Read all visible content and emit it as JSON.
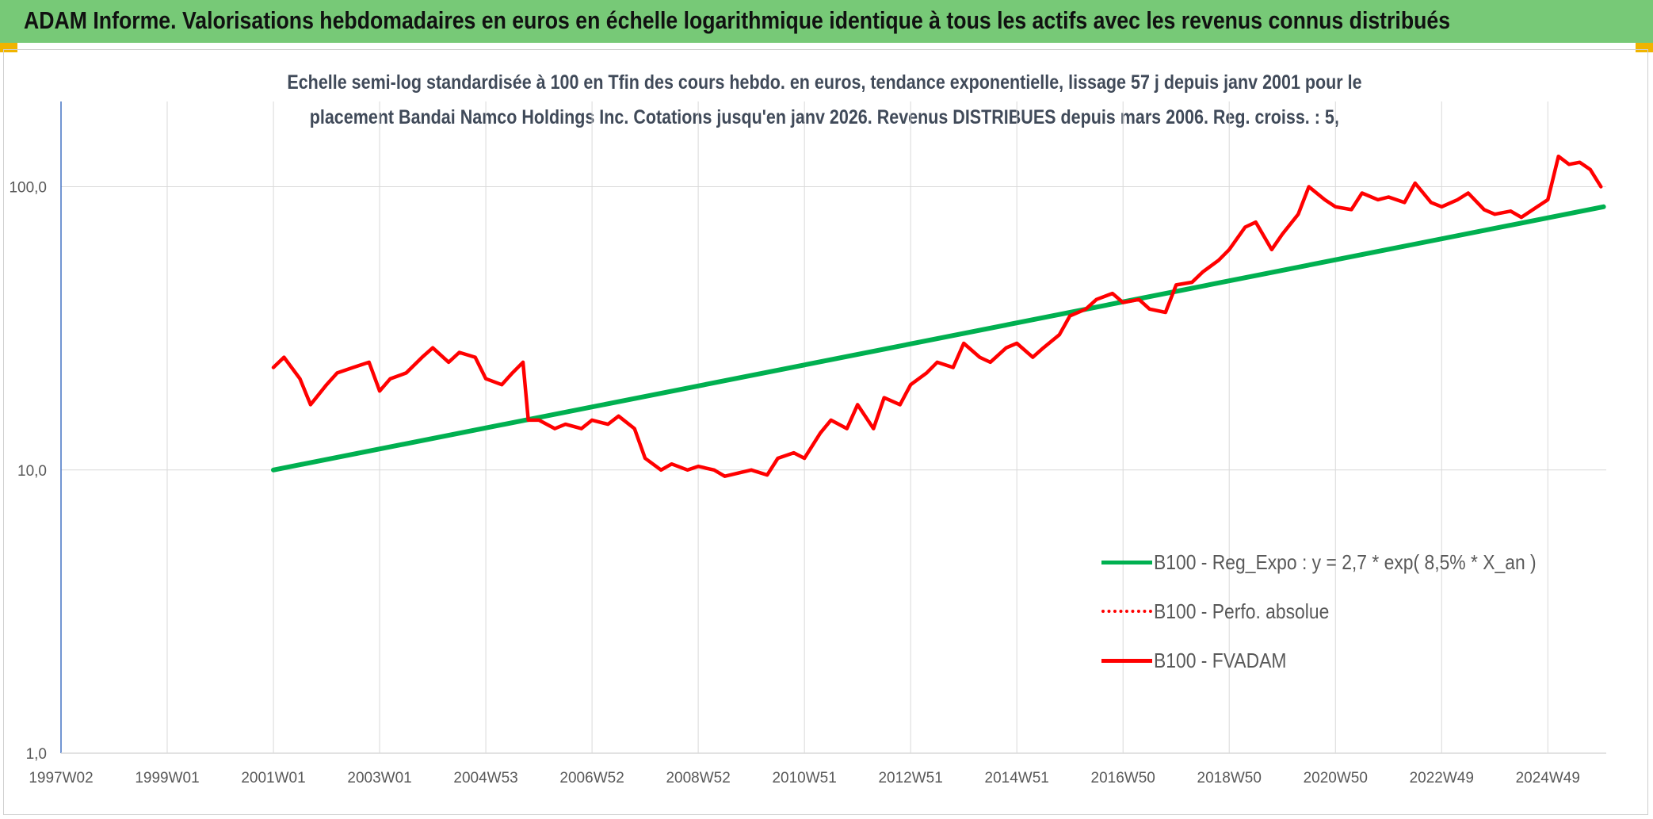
{
  "banner": {
    "title": "ADAM Informe. Valorisations hebdomadaires en euros en échelle logarithmique identique à tous les actifs avec les revenus connus distribués"
  },
  "chart_data": {
    "type": "line",
    "title_line1": "Echelle semi-log standardisée à 100 en Tfin des cours hebdo. en euros, tendance exponentielle, lissage 57 j depuis janv 2001 pour le",
    "title_line2": "placement Bandai Namco Holdings Inc. Cotations jusqu'en janv 2026. Revenus DISTRIBUES depuis mars 2006. Reg. croiss. : 5,",
    "y_scale": "log",
    "ylim": [
      1,
      200
    ],
    "y_ticks": [
      "1,0",
      "10,0",
      "100,0"
    ],
    "y_tick_values": [
      1,
      10,
      100
    ],
    "x_ticks": [
      "1997W02",
      "1999W01",
      "2001W01",
      "2003W01",
      "2004W53",
      "2006W52",
      "2008W52",
      "2010W51",
      "2012W51",
      "2014W51",
      "2016W50",
      "2018W50",
      "2020W50",
      "2022W49",
      "2024W49"
    ],
    "x_tick_years": [
      1997.0,
      1999.0,
      2001.0,
      2003.0,
      2005.0,
      2007.0,
      2009.0,
      2011.0,
      2013.0,
      2015.0,
      2017.0,
      2019.0,
      2021.0,
      2023.0,
      2025.0
    ],
    "xlim": [
      1997.0,
      2026.1
    ],
    "grid": true,
    "legend_position": "bottom-right",
    "series": [
      {
        "name": "B100 - Reg_Expo : y = 2,7 * exp( 8,5% *  X_an )",
        "color": "#00b050",
        "style": "solid",
        "x": [
          2001.0,
          2026.05
        ],
        "y": [
          10.0,
          85.0
        ]
      },
      {
        "name": "B100 - Perfo. absolue",
        "color": "#ff0000",
        "style": "dotted",
        "x": [],
        "y": []
      },
      {
        "name": "B100 - FVADAM",
        "color": "#ff0000",
        "style": "solid",
        "x": [
          2001.0,
          2001.2,
          2001.5,
          2001.7,
          2002.0,
          2002.2,
          2002.5,
          2002.8,
          2003.0,
          2003.2,
          2003.5,
          2003.8,
          2004.0,
          2004.3,
          2004.5,
          2004.8,
          2005.0,
          2005.3,
          2005.5,
          2005.7,
          2005.8,
          2006.0,
          2006.3,
          2006.5,
          2006.8,
          2007.0,
          2007.3,
          2007.5,
          2007.8,
          2008.0,
          2008.3,
          2008.5,
          2008.8,
          2009.0,
          2009.3,
          2009.5,
          2009.8,
          2010.0,
          2010.3,
          2010.5,
          2010.8,
          2011.0,
          2011.3,
          2011.5,
          2011.8,
          2012.0,
          2012.3,
          2012.5,
          2012.8,
          2013.0,
          2013.3,
          2013.5,
          2013.8,
          2014.0,
          2014.3,
          2014.5,
          2014.8,
          2015.0,
          2015.3,
          2015.5,
          2015.8,
          2016.0,
          2016.3,
          2016.5,
          2016.8,
          2017.0,
          2017.3,
          2017.5,
          2017.8,
          2018.0,
          2018.3,
          2018.5,
          2018.8,
          2019.0,
          2019.3,
          2019.5,
          2019.8,
          2020.0,
          2020.3,
          2020.5,
          2020.8,
          2021.0,
          2021.3,
          2021.5,
          2021.8,
          2022.0,
          2022.3,
          2022.5,
          2022.8,
          2023.0,
          2023.3,
          2023.5,
          2023.8,
          2024.0,
          2024.3,
          2024.5,
          2024.8,
          2025.0,
          2025.2,
          2025.4,
          2025.6,
          2025.8,
          2026.0
        ],
        "y": [
          23.0,
          25.0,
          21.0,
          17.0,
          20.0,
          22.0,
          23.0,
          24.0,
          19.0,
          21.0,
          22.0,
          25.0,
          27.0,
          24.0,
          26.0,
          25.0,
          21.0,
          20.0,
          22.0,
          24.0,
          15.0,
          15.0,
          14.0,
          14.5,
          14.0,
          15.0,
          14.5,
          15.5,
          14.0,
          11.0,
          10.0,
          10.5,
          10.0,
          10.3,
          10.0,
          9.5,
          9.8,
          10.0,
          9.6,
          11.0,
          11.5,
          11.0,
          13.5,
          15.0,
          14.0,
          17.0,
          14.0,
          18.0,
          17.0,
          20.0,
          22.0,
          24.0,
          23.0,
          28.0,
          25.0,
          24.0,
          27.0,
          28.0,
          25.0,
          27.0,
          30.0,
          35.0,
          37.0,
          40.0,
          42.0,
          39.0,
          40.0,
          37.0,
          36.0,
          45.0,
          46.0,
          50.0,
          55.0,
          60.0,
          72.0,
          75.0,
          60.0,
          68.0,
          80.0,
          100.0,
          90.0,
          85.0,
          83.0,
          95.0,
          90.0,
          92.0,
          88.0,
          103.0,
          88.0,
          85.0,
          90.0,
          95.0,
          83.0,
          80.0,
          82.0,
          78.0,
          85.0,
          90.0,
          128.0,
          120.0,
          122.0,
          115.0,
          100.0
        ]
      }
    ]
  }
}
